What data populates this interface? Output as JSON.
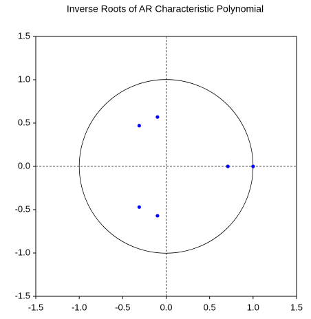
{
  "chart_data": {
    "type": "scatter",
    "title": "Inverse Roots of AR Characteristic Polynomial",
    "x": [
      -0.31,
      -0.31,
      -0.1,
      -0.1,
      0.71,
      1.0
    ],
    "values": [
      0.47,
      -0.47,
      0.57,
      -0.57,
      0.0,
      0.0
    ],
    "color": "#0000ff",
    "xlim": [
      -1.5,
      1.5
    ],
    "xticks": [
      -1.5,
      {
        "value": -1,
        "label": "-1.0"
      },
      -0.5,
      {
        "value": 0,
        "label": "0.0"
      },
      0.5,
      {
        "value": 1,
        "label": "1.0"
      },
      1.5
    ],
    "ylim": [
      -1.5,
      1.5
    ],
    "yticks": [
      -1.5,
      {
        "value": -1,
        "label": "-1.0"
      },
      -0.5,
      {
        "value": 0,
        "label": "0.0"
      },
      0.5,
      {
        "value": 1,
        "label": "1.0"
      },
      1.5
    ]
  }
}
